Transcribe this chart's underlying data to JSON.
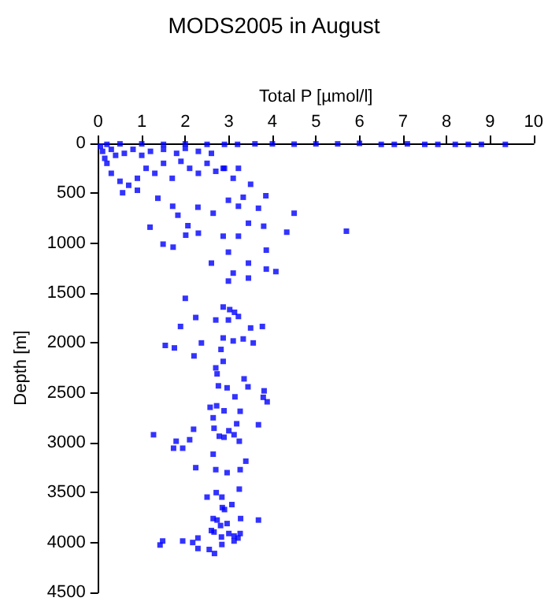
{
  "chart_data": {
    "type": "scatter",
    "title": "MODS2005 in August",
    "xlabel": "Total P [µmol/l]",
    "ylabel": "Depth [m]",
    "xlim": [
      0,
      10
    ],
    "xticks": [
      0,
      1,
      2,
      3,
      4,
      5,
      6,
      7,
      8,
      9,
      10
    ],
    "ylim": [
      4500,
      0
    ],
    "yticks": [
      0,
      500,
      1000,
      1500,
      2000,
      2500,
      3000,
      3500,
      4000,
      4500
    ],
    "grid": false,
    "marker": "square",
    "series": [
      {
        "color": "#0000ff",
        "x": [
          0.2,
          0.5,
          1,
          1.5,
          2,
          2.5,
          2.9,
          3.2,
          3.6,
          4,
          4.5,
          5,
          5.5,
          6,
          6.5,
          6.8,
          7.1,
          7.5,
          7.8,
          8.2,
          8.5,
          8.8,
          9.35,
          0.05,
          0.1,
          0.15,
          0.3,
          0.2,
          0.4,
          0.6,
          0.8,
          1,
          1.2,
          1.5,
          1.8,
          2,
          2.3,
          2.6,
          0.3,
          0.5,
          0.7,
          0.9,
          1.1,
          1.3,
          1.5,
          1.7,
          1.9,
          2.1,
          2.3,
          2.5,
          2.7,
          2.9,
          3.1,
          0.56,
          0.9,
          1.37,
          1.71,
          2.29,
          1.83,
          2.64,
          2.99,
          3.33,
          3.5,
          3.85,
          3.68,
          3.22,
          2.87,
          3.22,
          2.06,
          2.01,
          2.3,
          2.87,
          3.22,
          3.45,
          3.8,
          4.5,
          4.33,
          3.86,
          1.19,
          1.49,
          1.72,
          5.7,
          2.6,
          2.99,
          3.1,
          3.45,
          3.86,
          4.08,
          2.99,
          3.45,
          2.0,
          2.87,
          3.02,
          3.13,
          3.22,
          1.89,
          2.24,
          2.7,
          2.99,
          3.5,
          3.77,
          1.54,
          1.75,
          2.2,
          2.37,
          2.87,
          3.1,
          3.33,
          3.56,
          2.82,
          2.87,
          2.7,
          2.73,
          3.35,
          3.44,
          3.81,
          3.79,
          3.88,
          2.76,
          2.96,
          3.14,
          2.57,
          2.72,
          2.89,
          3.26,
          2.64,
          1.27,
          1.79,
          1.73,
          1.94,
          2.1,
          2.19,
          2.66,
          2.78,
          2.89,
          3.0,
          3.12,
          3.24,
          3.18,
          3.68,
          2.64,
          3.39,
          2.24,
          2.7,
          2.96,
          3.26,
          3.24,
          2.71,
          2.5,
          2.84,
          3.07,
          2.85,
          2.9,
          2.64,
          2.73,
          2.96,
          3.27,
          3.68,
          2.6,
          2.66,
          2.81,
          3.0,
          3.12,
          3.21,
          3.26,
          2.83,
          2.29,
          2.17,
          1.94,
          1.48,
          1.42,
          2.29,
          2.55,
          2.67,
          2.84,
          3.12
        ],
        "values": [
          10,
          5,
          5,
          10,
          5,
          10,
          10,
          10,
          5,
          5,
          8,
          5,
          5,
          0,
          10,
          10,
          5,
          10,
          10,
          10,
          10,
          10,
          10,
          30,
          80,
          150,
          60,
          200,
          120,
          100,
          60,
          120,
          80,
          60,
          100,
          50,
          80,
          100,
          300,
          380,
          420,
          350,
          250,
          300,
          200,
          350,
          180,
          250,
          300,
          200,
          280,
          250,
          350,
          495,
          470,
          550,
          630,
          640,
          720,
          700,
          570,
          540,
          410,
          525,
          650,
          630,
          250,
          250,
          825,
          920,
          900,
          930,
          930,
          800,
          830,
          700,
          890,
          1070,
          840,
          1010,
          1040,
          880,
          1200,
          1090,
          1300,
          1200,
          1260,
          1285,
          1380,
          1350,
          1553,
          1640,
          1666,
          1693,
          1735,
          1835,
          1745,
          1770,
          1770,
          1850,
          1835,
          2025,
          2050,
          2130,
          2000,
          1950,
          1980,
          1960,
          2000,
          2065,
          2185,
          2250,
          2310,
          2360,
          2440,
          2480,
          2545,
          2590,
          2430,
          2450,
          2540,
          2645,
          2630,
          2680,
          2685,
          2750,
          2920,
          2985,
          3055,
          3055,
          2970,
          2865,
          2855,
          2935,
          2945,
          2880,
          2920,
          2985,
          2810,
          2820,
          3115,
          3185,
          3250,
          3270,
          3300,
          3270,
          3465,
          3500,
          3545,
          3545,
          3620,
          3650,
          3670,
          3760,
          3775,
          3810,
          3760,
          3775,
          3880,
          3895,
          3830,
          3910,
          3935,
          3955,
          3910,
          3945,
          3955,
          4000,
          3985,
          3985,
          4025,
          4060,
          4070,
          4110,
          4020,
          3985
        ]
      }
    ]
  }
}
